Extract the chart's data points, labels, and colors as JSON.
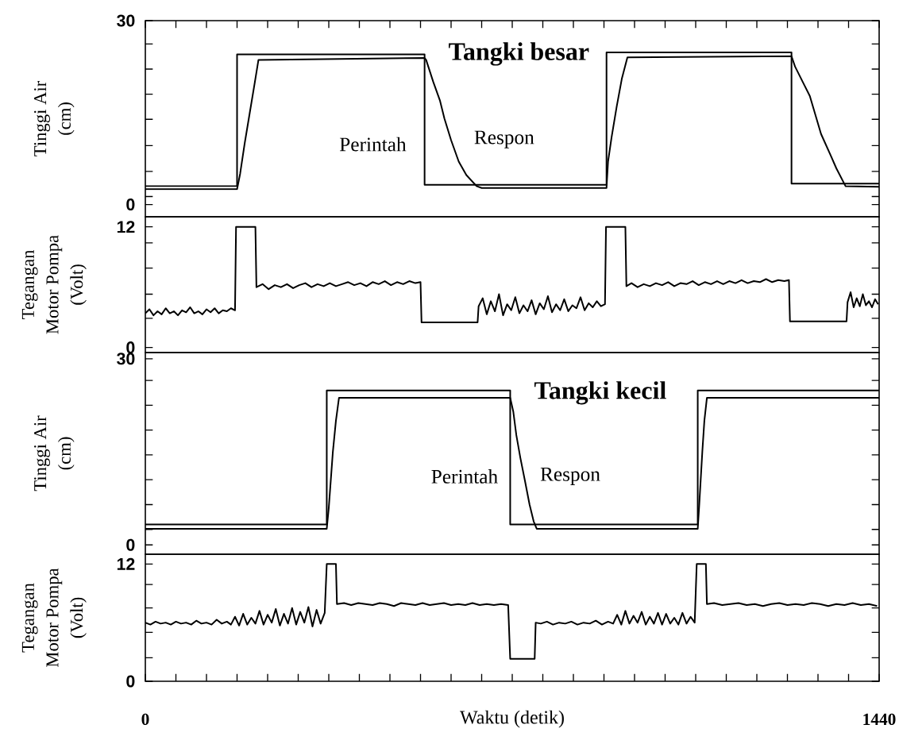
{
  "chart_data": [
    {
      "type": "line",
      "title": "Tangki besar",
      "ylabel": "Tinggi Air (cm)",
      "series": [
        {
          "name": "Perintah",
          "color": "#000000",
          "x": [
            0,
            180,
            180,
            548,
            548,
            905,
            905,
            1268,
            1268,
            1440
          ],
          "values": [
            3,
            3,
            24.5,
            24.5,
            3.2,
            3.2,
            24.8,
            24.8,
            3.4,
            3.4
          ]
        },
        {
          "name": "Respon",
          "color": "#000000",
          "x": [
            0,
            180,
            186,
            195,
            205,
            215,
            222,
            548,
            551,
            565,
            578,
            587,
            600,
            615,
            630,
            650,
            660,
            905,
            908,
            915,
            925,
            935,
            946,
            1268,
            1275,
            1290,
            1304,
            1326,
            1345,
            1356,
            1374,
            1440
          ],
          "values": [
            2.5,
            2.5,
            5,
            10,
            15,
            20,
            23.6,
            23.9,
            23.6,
            20,
            17,
            14,
            10.5,
            7,
            4.8,
            3,
            2.7,
            2.7,
            7,
            11,
            16,
            20.5,
            24,
            24.2,
            22.5,
            20,
            17.7,
            11.5,
            8,
            5.9,
            3,
            2.9
          ]
        }
      ],
      "xlim": [
        0,
        1440
      ],
      "ylim": [
        -2,
        30
      ],
      "xticks": [
        0,
        {
          "value": 60,
          "label": null
        },
        {
          "value": 120,
          "label": null
        },
        {
          "value": 180,
          "label": null
        },
        {
          "value": 240,
          "label": null
        },
        {
          "value": 300,
          "label": null
        },
        {
          "value": 360,
          "label": null
        },
        {
          "value": 420,
          "label": null
        },
        {
          "value": 480,
          "label": null
        },
        {
          "value": 540,
          "label": null
        },
        {
          "value": 600,
          "label": null
        },
        {
          "value": 660,
          "label": null
        },
        {
          "value": 720,
          "label": null
        },
        {
          "value": 780,
          "label": null
        },
        {
          "value": 840,
          "label": null
        },
        {
          "value": 900,
          "label": null
        },
        {
          "value": 960,
          "label": null
        },
        {
          "value": 1020,
          "label": null
        },
        {
          "value": 1080,
          "label": null
        },
        {
          "value": 1140,
          "label": null
        },
        {
          "value": 1200,
          "label": null
        },
        {
          "value": 1260,
          "label": null
        },
        {
          "value": 1320,
          "label": null
        },
        {
          "value": 1380,
          "label": null
        },
        1440
      ],
      "yticks": [
        0,
        {
          "value": 1.3,
          "label": null
        },
        {
          "value": 5.4,
          "label": null
        },
        {
          "value": 9.6,
          "label": null
        },
        {
          "value": 13.9,
          "label": null
        },
        {
          "value": 18,
          "label": null
        },
        {
          "value": 22.1,
          "label": null
        },
        {
          "value": 26.2,
          "label": null
        },
        30
      ],
      "tick_labels": "y"
    },
    {
      "type": "line",
      "ylabel": "Tegangan Motor Pompa (Volt)",
      "series": [
        {
          "color": "#000000",
          "x": [
            0,
            8,
            16,
            24,
            32,
            40,
            48,
            56,
            64,
            72,
            80,
            88,
            96,
            104,
            112,
            120,
            128,
            136,
            144,
            152,
            160,
            168,
            176,
            178,
            216,
            218,
            230,
            242,
            254,
            266,
            278,
            290,
            302,
            314,
            326,
            338,
            350,
            362,
            374,
            386,
            398,
            410,
            422,
            434,
            446,
            458,
            470,
            482,
            494,
            506,
            518,
            530,
            540,
            542,
            652,
            654,
            662,
            670,
            678,
            686,
            694,
            702,
            710,
            718,
            726,
            734,
            742,
            750,
            758,
            766,
            774,
            782,
            790,
            798,
            806,
            814,
            822,
            830,
            838,
            846,
            854,
            862,
            870,
            878,
            886,
            894,
            902,
            904,
            942,
            944,
            954,
            966,
            978,
            990,
            1002,
            1014,
            1026,
            1038,
            1050,
            1062,
            1074,
            1086,
            1098,
            1110,
            1122,
            1134,
            1146,
            1158,
            1170,
            1182,
            1194,
            1206,
            1218,
            1230,
            1242,
            1254,
            1263,
            1265,
            1376,
            1378,
            1384,
            1390,
            1396,
            1402,
            1408,
            1414,
            1420,
            1426,
            1432,
            1438
          ],
          "values": [
            3.4,
            3.8,
            3.2,
            3.6,
            3.3,
            3.9,
            3.4,
            3.6,
            3.2,
            3.7,
            3.5,
            4.0,
            3.4,
            3.6,
            3.3,
            3.8,
            3.5,
            3.9,
            3.4,
            3.7,
            3.6,
            3.9,
            3.7,
            12,
            12,
            6.0,
            6.3,
            5.8,
            6.2,
            6.0,
            6.3,
            5.9,
            6.2,
            6.4,
            6.0,
            6.3,
            6.1,
            6.4,
            6.1,
            6.3,
            6.5,
            6.2,
            6.4,
            6.1,
            6.5,
            6.3,
            6.6,
            6.2,
            6.5,
            6.3,
            6.6,
            6.4,
            6.5,
            2.5,
            2.5,
            4.1,
            4.9,
            3.3,
            4.6,
            3.6,
            5.3,
            3.2,
            4.3,
            3.7,
            5.0,
            3.4,
            4.2,
            3.6,
            4.7,
            3.3,
            4.4,
            3.8,
            5.1,
            3.5,
            4.3,
            3.7,
            4.8,
            3.6,
            4.2,
            3.9,
            5.0,
            3.7,
            4.4,
            4.0,
            4.6,
            4.1,
            4.3,
            12,
            12,
            6.1,
            6.4,
            6.0,
            6.3,
            6.1,
            6.4,
            6.2,
            6.5,
            6.1,
            6.4,
            6.3,
            6.6,
            6.2,
            6.5,
            6.3,
            6.6,
            6.3,
            6.6,
            6.4,
            6.7,
            6.4,
            6.6,
            6.5,
            6.8,
            6.5,
            6.7,
            6.6,
            6.7,
            2.6,
            2.6,
            4.5,
            5.5,
            4.0,
            4.9,
            4.1,
            5.3,
            4.2,
            4.6,
            4.0,
            4.8,
            4.3
          ]
        }
      ],
      "xlim": [
        0,
        1440
      ],
      "ylim": [
        -0.5,
        13
      ],
      "yticks": [
        0,
        {
          "value": 2.9,
          "label": null
        },
        {
          "value": 5.3,
          "label": null
        },
        {
          "value": 7.9,
          "label": null
        },
        {
          "value": 10.4,
          "label": null
        },
        12
      ],
      "tick_labels": "y"
    },
    {
      "type": "line",
      "title": "Tangki kecil",
      "ylabel": "Tinggi Air (cm)",
      "series": [
        {
          "name": "Perintah",
          "color": "#000000",
          "x": [
            0,
            356,
            356,
            716,
            716,
            1084,
            1084,
            1440
          ],
          "values": [
            3.3,
            3.3,
            24.9,
            24.9,
            3.3,
            3.3,
            24.9,
            24.9
          ]
        },
        {
          "name": "Respon",
          "color": "#000000",
          "x": [
            0,
            356,
            360,
            368,
            374,
            380,
            716,
            722,
            728,
            736,
            745,
            754,
            762,
            768,
            1084,
            1087,
            1093,
            1097,
            1102,
            1440
          ],
          "values": [
            2.6,
            2.6,
            6,
            15,
            20,
            23.7,
            23.7,
            21.5,
            17.7,
            14,
            10.3,
            6.5,
            3.8,
            2.6,
            2.6,
            6.5,
            15,
            20,
            23.7,
            23.7
          ]
        }
      ],
      "xlim": [
        0,
        1440
      ],
      "ylim": [
        -1.5,
        31
      ],
      "yticks": [
        0,
        {
          "value": 2.5,
          "label": null
        },
        {
          "value": 6.5,
          "label": null
        },
        {
          "value": 10.5,
          "label": null
        },
        {
          "value": 14.5,
          "label": null
        },
        {
          "value": 18.5,
          "label": null
        },
        {
          "value": 22.5,
          "label": null
        },
        {
          "value": 26.5,
          "label": null
        },
        30
      ],
      "tick_labels": "y"
    },
    {
      "type": "line",
      "ylabel": "Tegangan Motor Pompa (Volt)",
      "xlabel": "Waktu (detik)",
      "series": [
        {
          "color": "#000000",
          "x": [
            0,
            10,
            20,
            30,
            40,
            50,
            60,
            70,
            80,
            90,
            100,
            110,
            120,
            130,
            140,
            150,
            160,
            168,
            176,
            184,
            192,
            200,
            208,
            216,
            224,
            232,
            240,
            248,
            256,
            264,
            272,
            280,
            288,
            296,
            304,
            312,
            320,
            328,
            336,
            344,
            352,
            356,
            374,
            376,
            390,
            404,
            418,
            432,
            446,
            460,
            474,
            488,
            502,
            516,
            530,
            544,
            558,
            572,
            586,
            600,
            614,
            628,
            642,
            656,
            670,
            684,
            698,
            712,
            716,
            764,
            766,
            776,
            788,
            800,
            812,
            824,
            836,
            848,
            860,
            872,
            884,
            896,
            908,
            918,
            926,
            934,
            942,
            950,
            958,
            966,
            974,
            982,
            990,
            998,
            1006,
            1014,
            1022,
            1030,
            1038,
            1046,
            1054,
            1062,
            1070,
            1078,
            1082,
            1100,
            1102,
            1116,
            1132,
            1148,
            1164,
            1180,
            1196,
            1212,
            1228,
            1244,
            1260,
            1276,
            1292,
            1308,
            1324,
            1340,
            1356,
            1372,
            1388,
            1404,
            1420,
            1436
          ],
          "values": [
            6.0,
            5.8,
            6.1,
            5.9,
            6.0,
            5.8,
            6.1,
            5.9,
            6.0,
            5.8,
            6.2,
            5.9,
            6.0,
            5.8,
            6.3,
            5.9,
            6.1,
            5.8,
            6.6,
            5.7,
            6.9,
            5.8,
            6.5,
            5.9,
            7.2,
            5.8,
            6.8,
            6.0,
            7.4,
            5.7,
            6.9,
            5.9,
            7.5,
            5.8,
            7.1,
            6.0,
            7.6,
            5.6,
            7.3,
            5.9,
            7.0,
            12,
            12,
            7.9,
            8.0,
            7.8,
            8.0,
            7.9,
            7.8,
            8.0,
            7.9,
            7.7,
            8.0,
            7.9,
            7.8,
            8.0,
            7.8,
            7.9,
            8.0,
            7.8,
            7.9,
            7.8,
            8.0,
            7.8,
            7.9,
            7.8,
            7.9,
            7.8,
            2.3,
            2.3,
            6.0,
            5.9,
            6.1,
            5.8,
            6.0,
            5.9,
            6.1,
            5.8,
            6.0,
            5.9,
            6.2,
            5.8,
            6.1,
            5.9,
            6.8,
            5.8,
            7.2,
            5.9,
            6.7,
            6.0,
            7.1,
            5.8,
            6.6,
            5.9,
            7.0,
            5.8,
            6.9,
            5.9,
            6.5,
            5.8,
            7.0,
            5.9,
            6.6,
            6.0,
            12,
            12,
            7.9,
            8.0,
            7.8,
            7.9,
            8.0,
            7.8,
            7.9,
            7.7,
            7.9,
            8.0,
            7.8,
            7.9,
            7.8,
            8.0,
            7.9,
            7.7,
            7.9,
            7.8,
            8.0,
            7.8,
            7.9,
            7.7
          ]
        }
      ],
      "xlim": [
        0,
        1440
      ],
      "ylim": [
        0,
        13
      ],
      "xticks": [
        0,
        {
          "value": 60,
          "label": null
        },
        {
          "value": 120,
          "label": null
        },
        {
          "value": 180,
          "label": null
        },
        {
          "value": 240,
          "label": null
        },
        {
          "value": 300,
          "label": null
        },
        {
          "value": 360,
          "label": null
        },
        {
          "value": 420,
          "label": null
        },
        {
          "value": 480,
          "label": null
        },
        {
          "value": 540,
          "label": null
        },
        {
          "value": 600,
          "label": null
        },
        {
          "value": 660,
          "label": null
        },
        {
          "value": 720,
          "label": null
        },
        {
          "value": 780,
          "label": null
        },
        {
          "value": 840,
          "label": null
        },
        {
          "value": 900,
          "label": null
        },
        {
          "value": 960,
          "label": null
        },
        {
          "value": 1020,
          "label": null
        },
        {
          "value": 1080,
          "label": null
        },
        {
          "value": 1140,
          "label": null
        },
        {
          "value": 1200,
          "label": null
        },
        {
          "value": 1260,
          "label": null
        },
        {
          "value": 1320,
          "label": null
        },
        {
          "value": 1380,
          "label": null
        },
        1440
      ],
      "yticks": [
        0,
        {
          "value": 2.4,
          "label": null
        },
        {
          "value": 5,
          "label": null
        },
        {
          "value": 7.5,
          "label": null
        },
        {
          "value": 9.9,
          "label": null
        },
        12
      ]
    }
  ]
}
